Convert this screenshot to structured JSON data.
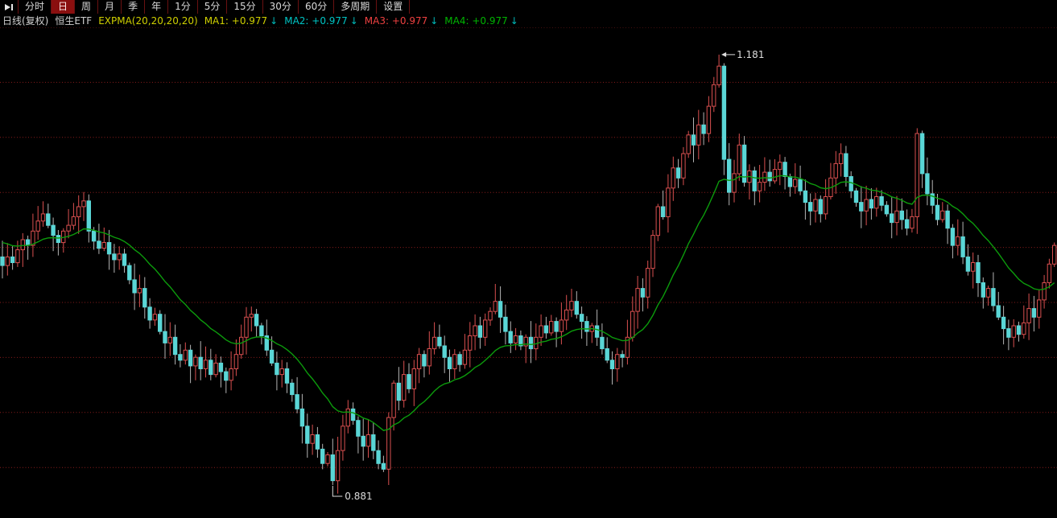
{
  "tabbar": {
    "icon": "arrow-to-bar",
    "tabs": [
      {
        "label": "分时",
        "slug": "tab-intraday",
        "selected": false
      },
      {
        "label": "日",
        "slug": "tab-day",
        "selected": true
      },
      {
        "label": "周",
        "slug": "tab-week",
        "selected": false
      },
      {
        "label": "月",
        "slug": "tab-month",
        "selected": false
      },
      {
        "label": "季",
        "slug": "tab-quarter",
        "selected": false
      },
      {
        "label": "年",
        "slug": "tab-year",
        "selected": false
      },
      {
        "label": "1分",
        "slug": "tab-1min",
        "selected": false
      },
      {
        "label": "5分",
        "slug": "tab-5min",
        "selected": false
      },
      {
        "label": "15分",
        "slug": "tab-15min",
        "selected": false
      },
      {
        "label": "30分",
        "slug": "tab-30min",
        "selected": false
      },
      {
        "label": "60分",
        "slug": "tab-60min",
        "selected": false
      },
      {
        "label": "多周期",
        "slug": "tab-multi-period",
        "selected": false
      },
      {
        "label": "设置",
        "slug": "tab-settings",
        "selected": false
      }
    ]
  },
  "infobar": {
    "mode": "日线(复权)",
    "instrument": "恒生ETF",
    "indicator": "EXPMA(20,20,20,20)",
    "ma_items": [
      {
        "label": "MA1:",
        "value": "+0.977",
        "color": "#cfcf00",
        "arrow": "↓",
        "arrow_color": "#00b8b8"
      },
      {
        "label": "MA2:",
        "value": "+0.977",
        "color": "#00c4c4",
        "arrow": "↓",
        "arrow_color": "#00b8b8"
      },
      {
        "label": "MA3:",
        "value": "+0.977",
        "color": "#ee4040",
        "arrow": "↓",
        "arrow_color": "#00b8b8"
      },
      {
        "label": "MA4:",
        "value": "+0.977",
        "color": "#00b400",
        "arrow": "↓",
        "arrow_color": "#00b8b8"
      }
    ]
  },
  "chart_data": {
    "type": "candlestick",
    "instrument": "恒生ETF",
    "period": "日线(复权)",
    "overlay": {
      "name": "EXPMA",
      "period": 20,
      "seed": 1.05,
      "color": "#0c9b0c"
    },
    "ylim": [
      0.858,
      1.2
    ],
    "grid": "horizontal-dotted",
    "gridline_count": 9,
    "axes_visible": false,
    "closes": [
      1.034,
      1.04,
      1.036,
      1.045,
      1.052,
      1.048,
      1.058,
      1.065,
      1.07,
      1.062,
      1.055,
      1.05,
      1.058,
      1.062,
      1.068,
      1.075,
      1.079,
      1.058,
      1.051,
      1.046,
      1.05,
      1.042,
      1.038,
      1.042,
      1.034,
      1.024,
      1.015,
      1.018,
      1.005,
      0.996,
      1.0,
      0.988,
      0.98,
      0.984,
      0.972,
      0.968,
      0.975,
      0.964,
      0.97,
      0.962,
      0.968,
      0.958,
      0.966,
      0.96,
      0.954,
      0.962,
      0.972,
      0.984,
      0.998,
      1.0,
      0.992,
      0.985,
      0.975,
      0.966,
      0.958,
      0.962,
      0.952,
      0.944,
      0.934,
      0.922,
      0.91,
      0.916,
      0.906,
      0.896,
      0.902,
      0.884,
      0.905,
      0.922,
      0.934,
      0.926,
      0.915,
      0.908,
      0.916,
      0.905,
      0.896,
      0.892,
      0.928,
      0.952,
      0.94,
      0.958,
      0.948,
      0.962,
      0.972,
      0.964,
      0.976,
      0.984,
      0.978,
      0.97,
      0.962,
      0.972,
      0.965,
      0.975,
      0.985,
      0.992,
      0.984,
      0.996,
      1.002,
      1.009,
      0.998,
      0.988,
      0.98,
      0.985,
      0.978,
      0.984,
      0.976,
      0.984,
      0.992,
      0.987,
      0.995,
      0.988,
      0.996,
      1.003,
      1.009,
      1.0,
      0.995,
      0.988,
      0.992,
      0.984,
      0.976,
      0.968,
      0.962,
      0.972,
      0.97,
      0.984,
      1.002,
      1.018,
      1.012,
      1.032,
      1.055,
      1.075,
      1.068,
      1.088,
      1.102,
      1.095,
      1.112,
      1.125,
      1.118,
      1.132,
      1.126,
      1.145,
      1.16,
      1.173,
      1.108,
      1.085,
      1.098,
      1.118,
      1.092,
      1.1,
      1.086,
      1.092,
      1.099,
      1.093,
      1.101,
      1.106,
      1.096,
      1.089,
      1.094,
      1.086,
      1.078,
      1.072,
      1.08,
      1.07,
      1.082,
      1.095,
      1.105,
      1.112,
      1.096,
      1.086,
      1.078,
      1.072,
      1.08,
      1.074,
      1.082,
      1.076,
      1.07,
      1.064,
      1.072,
      1.066,
      1.06,
      1.068,
      1.126,
      1.098,
      1.084,
      1.076,
      1.066,
      1.072,
      1.06,
      1.048,
      1.054,
      1.04,
      1.03,
      1.036,
      1.022,
      1.012,
      1.018,
      1.006,
      0.998,
      0.99,
      0.984,
      0.992,
      0.986,
      0.994,
      1.004,
      0.998,
      1.01,
      1.022,
      1.035,
      1.048
    ],
    "annotations": [
      {
        "label": "1.181",
        "candle_index": 141,
        "attach": "high",
        "value": 1.181
      },
      {
        "label": "0.881",
        "candle_index": 65,
        "attach": "low",
        "value": 0.881
      }
    ],
    "colors": {
      "up": "#d94f4f",
      "down": "#5ad6d6",
      "down_wick": "#b4b4b4",
      "grid": "#8a1c1c",
      "annotation": "#dcdcdc",
      "ema": "#0c9b0c"
    }
  }
}
